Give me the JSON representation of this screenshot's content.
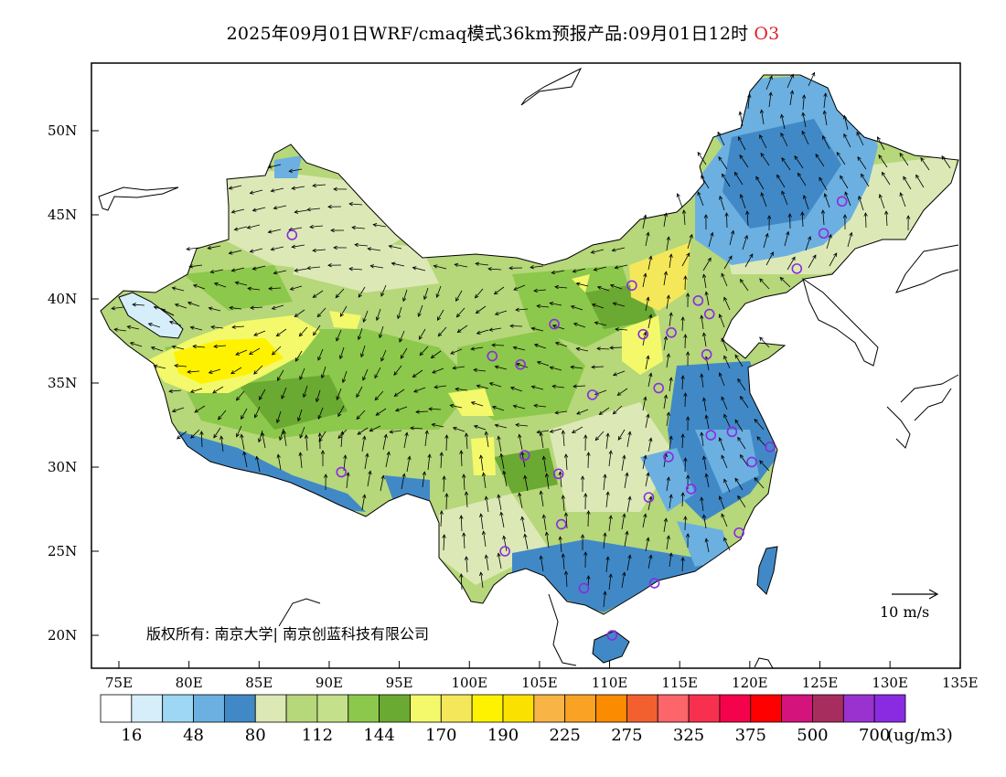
{
  "header": {
    "title": "2025年09月01日WRF/cmaq模式36km预报产品:09月01日12时",
    "species": "O3"
  },
  "axes": {
    "lat_labels": [
      "50N",
      "45N",
      "40N",
      "35N",
      "30N",
      "25N",
      "20N"
    ],
    "lat_values": [
      50,
      45,
      40,
      35,
      30,
      25,
      20
    ],
    "lon_labels": [
      "75E",
      "80E",
      "85E",
      "90E",
      "95E",
      "100E",
      "105E",
      "110E",
      "115E",
      "120E",
      "125E",
      "130E",
      "135E"
    ],
    "lon_values": [
      75,
      80,
      85,
      90,
      95,
      100,
      105,
      110,
      115,
      120,
      125,
      130,
      135
    ]
  },
  "copyright": "版权所有: 南京大学| 南京创蓝科技有限公司",
  "wind_reference": "10 m/s",
  "colorbar": {
    "labels": [
      "16",
      "48",
      "80",
      "112",
      "144",
      "170",
      "190",
      "225",
      "275",
      "325",
      "375",
      "500",
      "700"
    ],
    "unit": "(ug/m3)",
    "colors": [
      "#ffffff",
      "#d6eefa",
      "#9dd7f4",
      "#6bb0e0",
      "#4189c6",
      "#dce9b6",
      "#b6d77a",
      "#c4e08b",
      "#8cc84b",
      "#6aa932",
      "#f3f96a",
      "#f4e85a",
      "#fef200",
      "#fbe100",
      "#f8b445",
      "#f9a223",
      "#fb8b00",
      "#f2602f",
      "#fc656a",
      "#f8304f",
      "#f4024b",
      "#ff0000",
      "#d4137c",
      "#a82d5f",
      "#9a32d0",
      "#8a2be2"
    ]
  },
  "cities": [
    {
      "lon": 87.6,
      "lat": 43.8
    },
    {
      "lon": 126.6,
      "lat": 45.8
    },
    {
      "lon": 125.3,
      "lat": 43.9
    },
    {
      "lon": 123.4,
      "lat": 41.8
    },
    {
      "lon": 111.7,
      "lat": 40.8
    },
    {
      "lon": 116.4,
      "lat": 39.9
    },
    {
      "lon": 117.2,
      "lat": 39.1
    },
    {
      "lon": 106.2,
      "lat": 38.5
    },
    {
      "lon": 112.5,
      "lat": 37.9
    },
    {
      "lon": 114.5,
      "lat": 38.0
    },
    {
      "lon": 117.0,
      "lat": 36.7
    },
    {
      "lon": 101.8,
      "lat": 36.6
    },
    {
      "lon": 103.8,
      "lat": 36.1
    },
    {
      "lon": 113.6,
      "lat": 34.7
    },
    {
      "lon": 108.9,
      "lat": 34.3
    },
    {
      "lon": 117.3,
      "lat": 31.9
    },
    {
      "lon": 118.8,
      "lat": 32.1
    },
    {
      "lon": 121.5,
      "lat": 31.2
    },
    {
      "lon": 120.2,
      "lat": 30.3
    },
    {
      "lon": 114.3,
      "lat": 30.6
    },
    {
      "lon": 104.1,
      "lat": 30.7
    },
    {
      "lon": 106.5,
      "lat": 29.6
    },
    {
      "lon": 91.1,
      "lat": 29.7
    },
    {
      "lon": 112.9,
      "lat": 28.2
    },
    {
      "lon": 115.9,
      "lat": 28.7
    },
    {
      "lon": 106.7,
      "lat": 26.6
    },
    {
      "lon": 119.3,
      "lat": 26.1
    },
    {
      "lon": 102.7,
      "lat": 25.0
    },
    {
      "lon": 108.3,
      "lat": 22.8
    },
    {
      "lon": 113.3,
      "lat": 23.1
    },
    {
      "lon": 110.3,
      "lat": 20.0
    }
  ]
}
